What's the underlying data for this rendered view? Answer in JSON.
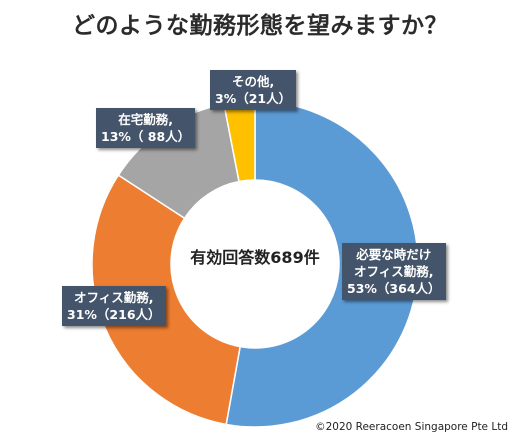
{
  "chart_data": {
    "type": "pie",
    "title": "どのような勤務形態を望みますか？",
    "center_label": "有効回答数689件",
    "total": 689,
    "slices": [
      {
        "lines": [
          "必要な時だけ",
          "オフィス勤務,",
          "53%（364人）"
        ],
        "percent": 53,
        "count": 364,
        "color": "#5b9bd5"
      },
      {
        "lines": [
          "オフィス勤務,",
          "31%（216人）"
        ],
        "percent": 31,
        "count": 216,
        "color": "#ed7d31"
      },
      {
        "lines": [
          "在宅勤務,",
          "13%（ 88人）"
        ],
        "percent": 13,
        "count": 88,
        "color": "#a5a5a5"
      },
      {
        "lines": [
          "その他,",
          "3%（21人）"
        ],
        "percent": 3,
        "count": 21,
        "color": "#ffc000"
      }
    ]
  },
  "copyright": "©2020 Reeracoen Singapore Pte Ltd"
}
